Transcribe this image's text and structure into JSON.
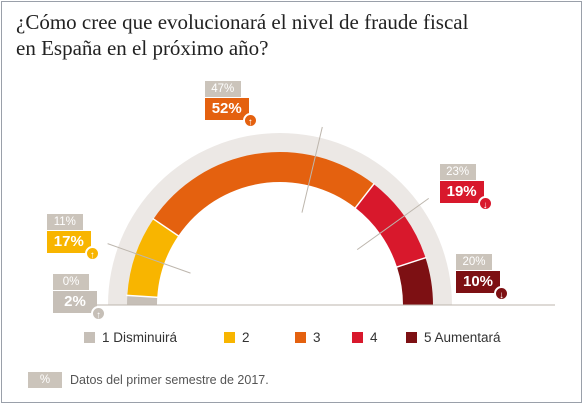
{
  "title": "¿Cómo cree que evolucionará el nivel de fraude fiscal en España en el próximo año?",
  "chart_data": {
    "type": "semi-donut",
    "categories": [
      "1 Disminuirá",
      "2",
      "3",
      "4",
      "5 Aumentará"
    ],
    "series": [
      {
        "values": [
          0,
          11,
          47,
          23,
          20
        ]
      },
      {
        "values": [
          2,
          17,
          52,
          19,
          10
        ]
      }
    ],
    "labels_previous": [
      "0%",
      "11%",
      "47%",
      "23%",
      "20%"
    ],
    "labels_current": [
      "2%",
      "17%",
      "52%",
      "19%",
      "10%"
    ],
    "trend": [
      "up",
      "up",
      "up",
      "down",
      "down"
    ],
    "colors": [
      "#c6bfb7",
      "#f8b500",
      "#e4610f",
      "#d8182c",
      "#7d1013"
    ],
    "previous_label_color": "#cbc4bb",
    "track_color": "#ece8e5"
  },
  "legend": [
    "1 Disminuirá",
    "2",
    "3",
    "4",
    "5 Aumentará"
  ],
  "footnote": {
    "badge": "%",
    "text": "Datos del primer semestre de 2017."
  }
}
